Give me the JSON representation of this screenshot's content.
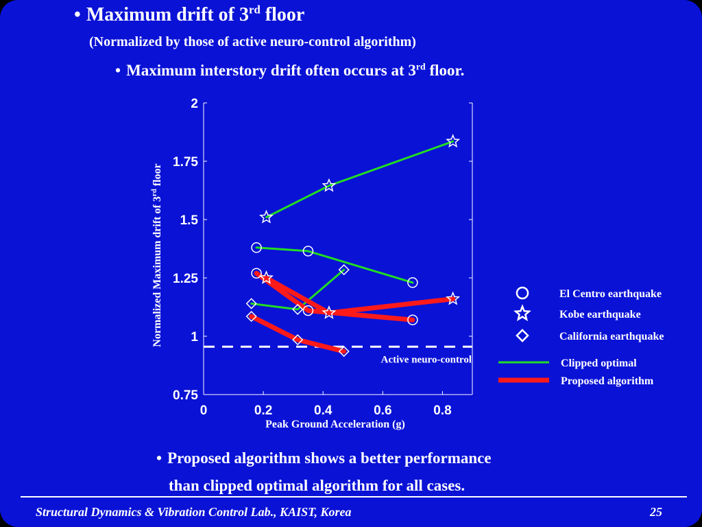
{
  "slide": {
    "title_main": "Maximum drift of 3",
    "title_sup": "rd",
    "title_end": " floor",
    "subtitle": "(Normalized by those of active neuro-control algorithm)",
    "bullet1_main": "Maximum interstory drift often occurs at 3",
    "bullet1_sup": "rd",
    "bullet1_end": " floor.",
    "bullet2_line1": "Proposed algorithm shows a better performance",
    "bullet2_line2": "than clipped optimal algorithm for all cases.",
    "footer_lab": "Structural Dynamics & Vibration Control Lab., KAIST, Korea",
    "footer_page": "25",
    "bullet_glyph": "•"
  },
  "chart_data": {
    "type": "line",
    "xlabel": "Peak Ground Acceleration (g)",
    "ylabel_main": "Normalized Maximum drift of 3",
    "ylabel_sup": "rd",
    "ylabel_end": " floor",
    "xlim": [
      0,
      0.9
    ],
    "ylim": [
      0.75,
      2
    ],
    "xticks": [
      0,
      0.2,
      0.4,
      0.6,
      0.8
    ],
    "xtick_labels": [
      "0",
      "0.2",
      "0.4",
      "0.6",
      "0.8"
    ],
    "yticks": [
      0.75,
      1,
      1.25,
      1.5,
      1.75,
      2
    ],
    "ytick_labels": [
      "0.75",
      "1",
      "1.25",
      "1.5",
      "1.75",
      "2"
    ],
    "reference_line": {
      "y": 0.955,
      "label": "Active neuro-control",
      "color": "#ffffff"
    },
    "series": [
      {
        "earthquake": "El Centro",
        "algorithm": "clipped",
        "marker": "circle",
        "color": "#22dd22",
        "x": [
          0.177,
          0.35,
          0.7
        ],
        "y": [
          1.38,
          1.365,
          1.23
        ]
      },
      {
        "earthquake": "Kobe",
        "algorithm": "clipped",
        "marker": "star",
        "color": "#22dd22",
        "x": [
          0.21,
          0.42,
          0.835
        ],
        "y": [
          1.51,
          1.645,
          1.835
        ]
      },
      {
        "earthquake": "California",
        "algorithm": "clipped",
        "marker": "diamond",
        "color": "#22dd22",
        "x": [
          0.16,
          0.315,
          0.47
        ],
        "y": [
          1.14,
          1.115,
          1.285
        ]
      },
      {
        "earthquake": "El Centro",
        "algorithm": "proposed",
        "marker": "circle",
        "color": "#ff1a1a",
        "x": [
          0.177,
          0.35,
          0.7
        ],
        "y": [
          1.27,
          1.11,
          1.07
        ]
      },
      {
        "earthquake": "Kobe",
        "algorithm": "proposed",
        "marker": "star",
        "color": "#ff1a1a",
        "x": [
          0.21,
          0.42,
          0.835
        ],
        "y": [
          1.25,
          1.1,
          1.16
        ]
      },
      {
        "earthquake": "California",
        "algorithm": "proposed",
        "marker": "diamond",
        "color": "#ff1a1a",
        "x": [
          0.16,
          0.315,
          0.47
        ],
        "y": [
          1.085,
          0.985,
          0.935
        ]
      }
    ],
    "legend": {
      "placement": "right",
      "markers": [
        {
          "marker": "circle",
          "label": "El Centro earthquake"
        },
        {
          "marker": "star",
          "label": "Kobe earthquake"
        },
        {
          "marker": "diamond",
          "label": "California earthquake"
        }
      ],
      "lines": [
        {
          "color": "#22dd22",
          "label": "Clipped optimal"
        },
        {
          "color": "#ff1a1a",
          "label": "Proposed algorithm"
        }
      ]
    },
    "grid": false
  }
}
